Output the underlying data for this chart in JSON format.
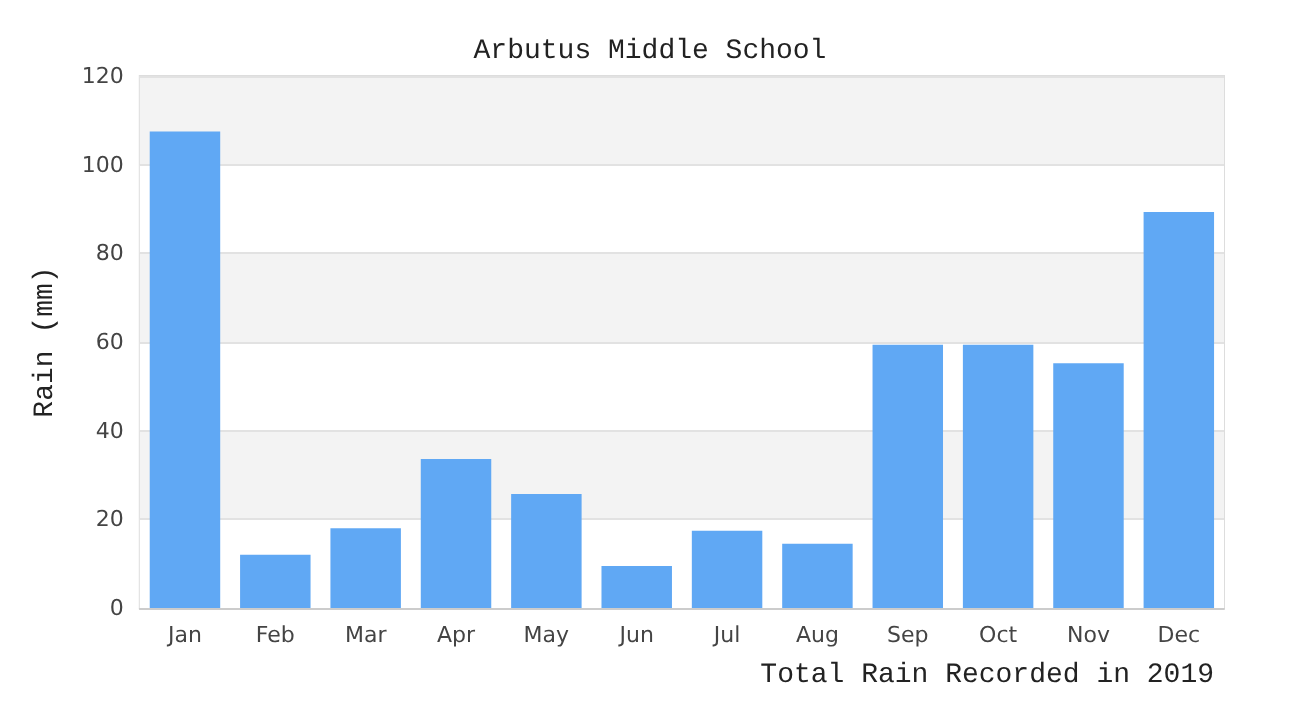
{
  "chart_data": {
    "type": "bar",
    "title": "Arbutus Middle School",
    "xlabel": "Total Rain Recorded in 2019",
    "ylabel": "Rain (mm)",
    "categories": [
      "Jan",
      "Feb",
      "Mar",
      "Apr",
      "May",
      "Jun",
      "Jul",
      "Aug",
      "Sep",
      "Oct",
      "Nov",
      "Dec"
    ],
    "values": [
      107.5,
      12,
      18,
      33.6,
      25.7,
      9.5,
      17.4,
      14.5,
      59.4,
      59.4,
      55.2,
      89.3
    ],
    "color": "#60a8f4",
    "ylim": [
      0,
      120
    ],
    "yticks": [
      0,
      20,
      40,
      60,
      80,
      100,
      120
    ],
    "grid": "y"
  }
}
